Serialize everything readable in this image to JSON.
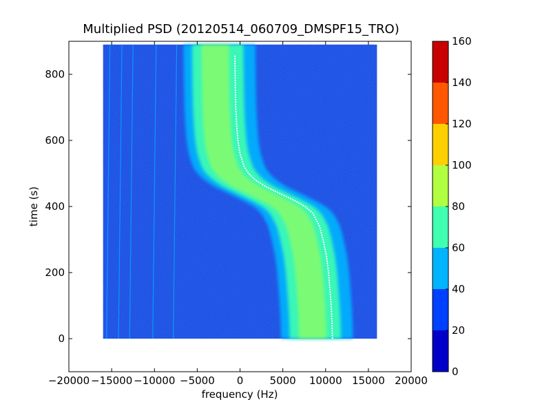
{
  "chart_data": {
    "type": "heatmap",
    "title": "Multiplied PSD (20120514_060709_DMSPF15_TRO)",
    "xlabel": "frequency (Hz)",
    "ylabel": "time (s)",
    "xlim": [
      -20000,
      20000
    ],
    "ylim": [
      -100,
      900
    ],
    "xticks": [
      {
        "value": -20000,
        "label": "−20000"
      },
      {
        "value": -15000,
        "label": "−15000"
      },
      {
        "value": -10000,
        "label": "−10000"
      },
      {
        "value": -5000,
        "label": "−5000"
      },
      {
        "value": 0,
        "label": "0"
      },
      {
        "value": 5000,
        "label": "5000"
      },
      {
        "value": 10000,
        "label": "10000"
      },
      {
        "value": 15000,
        "label": "15000"
      },
      {
        "value": 20000,
        "label": "20000"
      }
    ],
    "yticks": [
      {
        "value": 0,
        "label": "0"
      },
      {
        "value": 200,
        "label": "200"
      },
      {
        "value": 400,
        "label": "400"
      },
      {
        "value": 600,
        "label": "600"
      },
      {
        "value": 800,
        "label": "800"
      }
    ],
    "data_extent": {
      "x": [
        -16000,
        16000
      ],
      "y": [
        0,
        890
      ]
    },
    "doppler_curve": [
      {
        "t": 0,
        "f": 10800
      },
      {
        "t": 50,
        "f": 10750
      },
      {
        "t": 100,
        "f": 10650
      },
      {
        "t": 150,
        "f": 10500
      },
      {
        "t": 200,
        "f": 10350
      },
      {
        "t": 250,
        "f": 10100
      },
      {
        "t": 300,
        "f": 9700
      },
      {
        "t": 340,
        "f": 9300
      },
      {
        "t": 380,
        "f": 8500
      },
      {
        "t": 400,
        "f": 7600
      },
      {
        "t": 420,
        "f": 6200
      },
      {
        "t": 440,
        "f": 4600
      },
      {
        "t": 460,
        "f": 3000
      },
      {
        "t": 480,
        "f": 1800
      },
      {
        "t": 500,
        "f": 1000
      },
      {
        "t": 520,
        "f": 500
      },
      {
        "t": 560,
        "f": 0
      },
      {
        "t": 600,
        "f": -250
      },
      {
        "t": 650,
        "f": -400
      },
      {
        "t": 700,
        "f": -500
      },
      {
        "t": 760,
        "f": -550
      },
      {
        "t": 820,
        "f": -580
      },
      {
        "t": 860,
        "f": -600
      }
    ],
    "colorbar": {
      "levels": [
        0,
        20,
        40,
        60,
        80,
        100,
        120,
        140,
        160
      ],
      "colors": [
        "#0000c8",
        "#0040ff",
        "#00b4ff",
        "#40ffb0",
        "#b0ff40",
        "#ffd000",
        "#ff5800",
        "#c80000"
      ],
      "ticks": [
        "0",
        "20",
        "40",
        "60",
        "80",
        "100",
        "120",
        "140",
        "160"
      ]
    },
    "background_color": "#2b5cf2",
    "grid": false
  }
}
